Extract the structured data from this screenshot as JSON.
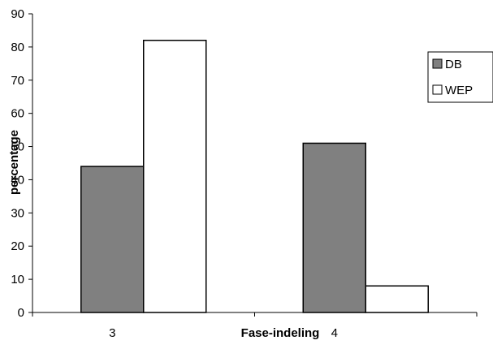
{
  "chart_data": {
    "type": "bar",
    "categories": [
      "3",
      "4"
    ],
    "series": [
      {
        "name": "DB",
        "values": [
          44,
          51
        ],
        "color": "#808080"
      },
      {
        "name": "WEP",
        "values": [
          82,
          8
        ],
        "color": "#ffffff"
      }
    ],
    "xlabel": "Fase-indeling",
    "ylabel": "percentage",
    "ylim": [
      0,
      90
    ],
    "yticks": [
      0,
      10,
      20,
      30,
      40,
      50,
      60,
      70,
      80,
      90
    ],
    "grid": false,
    "legend_position": "right"
  }
}
